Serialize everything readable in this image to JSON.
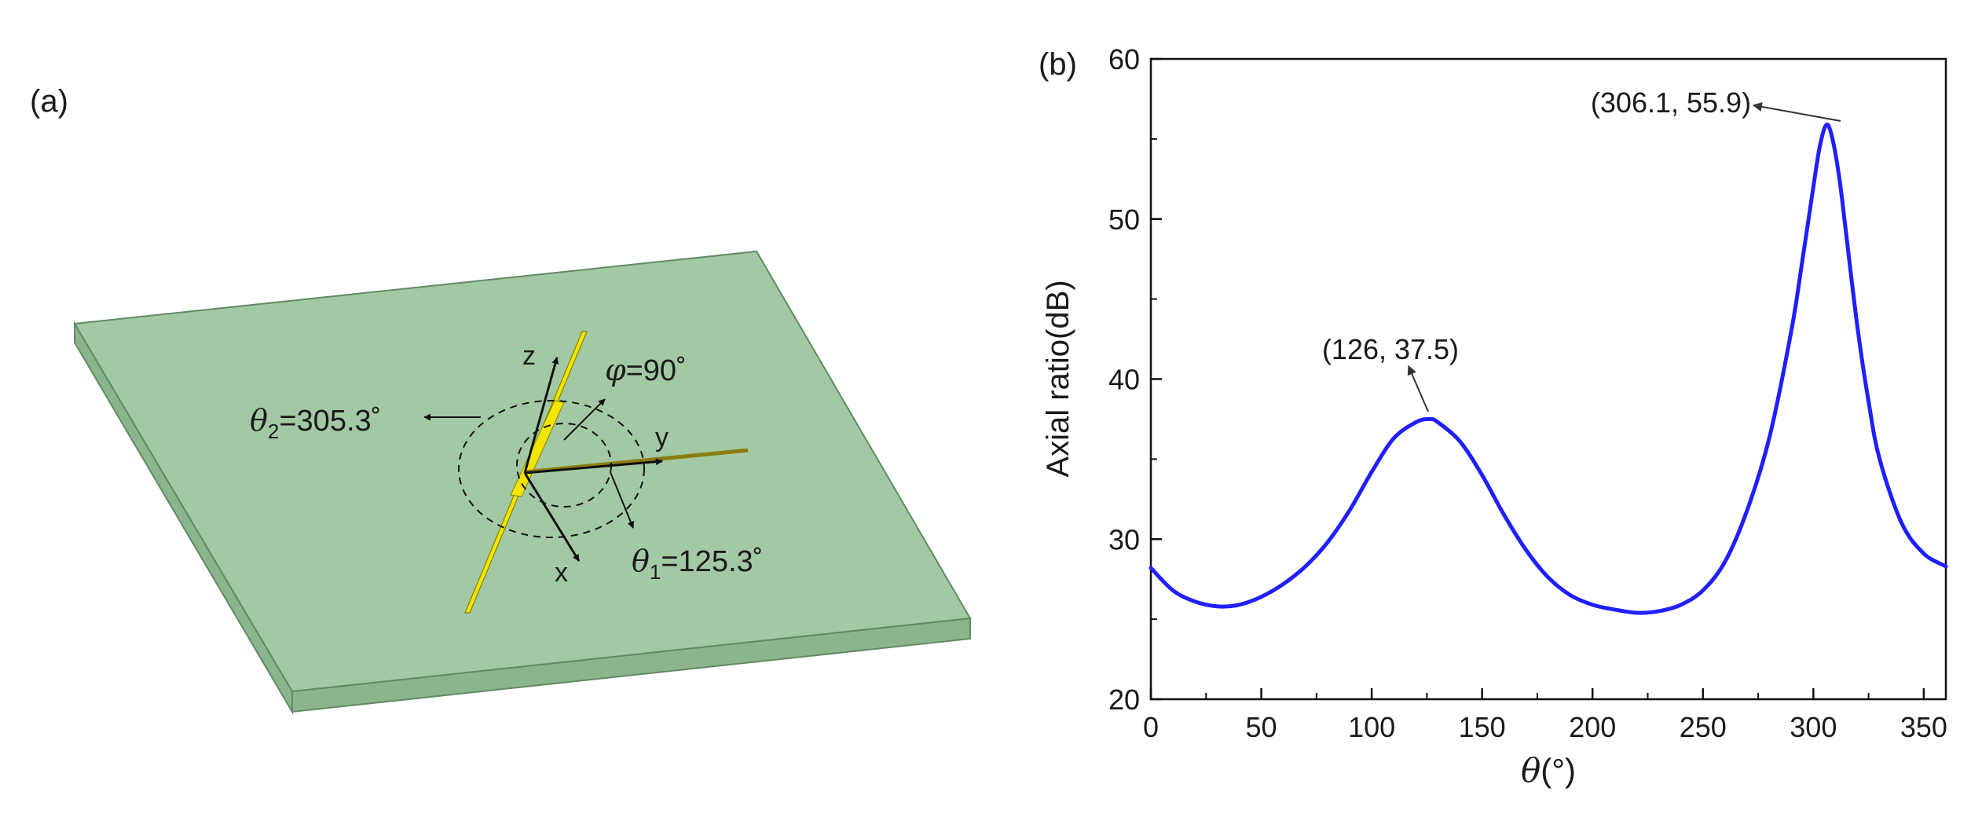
{
  "panel_a": {
    "label": "(a)",
    "colors": {
      "substrate_top": "#a3c9a4",
      "substrate_side": "#8bb58d",
      "substrate_edge": "#5f8b62",
      "wire": "#f2e600",
      "wire_edge": "#8a8200"
    },
    "axes": {
      "x": "x",
      "y": "y",
      "z": "z"
    },
    "phi": {
      "symbol": "φ",
      "value": "=90˚"
    },
    "theta1": {
      "symbol": "θ",
      "sub": "1",
      "value": "=125.3˚"
    },
    "theta2": {
      "symbol": "θ",
      "sub": "2",
      "value": "=305.3˚"
    }
  },
  "chart_data": {
    "type": "line",
    "panel_label": "(b)",
    "title": "",
    "xlabel_symbol": "θ",
    "xlabel_unit": "(°)",
    "ylabel": "Axial ratio(dB)",
    "xlim": [
      0,
      360
    ],
    "ylim": [
      20,
      60
    ],
    "xticks": [
      0,
      50,
      100,
      150,
      200,
      250,
      300,
      350
    ],
    "yticks": [
      20,
      30,
      40,
      50,
      60
    ],
    "grid": false,
    "series": [
      {
        "name": "Axial ratio",
        "color": "#1f1fff",
        "x": [
          0,
          10,
          20,
          30,
          40,
          50,
          60,
          70,
          80,
          90,
          100,
          110,
          120,
          126,
          130,
          140,
          150,
          160,
          170,
          180,
          190,
          200,
          210,
          220,
          230,
          240,
          250,
          260,
          270,
          280,
          290,
          295,
          300,
          303,
          306.1,
          309,
          312,
          315,
          320,
          325,
          330,
          340,
          350,
          360
        ],
        "y": [
          28.2,
          26.8,
          26.1,
          25.8,
          25.9,
          26.4,
          27.2,
          28.3,
          29.8,
          31.8,
          34.2,
          36.3,
          37.3,
          37.5,
          37.3,
          36.1,
          34.0,
          31.5,
          29.3,
          27.6,
          26.5,
          25.9,
          25.6,
          25.4,
          25.5,
          25.9,
          26.8,
          28.6,
          31.8,
          36.3,
          43.0,
          47.4,
          52.0,
          54.6,
          55.9,
          54.8,
          52.3,
          48.9,
          43.2,
          38.6,
          35.0,
          31.0,
          29.1,
          28.3
        ]
      }
    ],
    "annotations": [
      {
        "text": "(306.1, 55.9)",
        "x": 306.1,
        "y": 55.9
      },
      {
        "text": "(126, 37.5)",
        "x": 126,
        "y": 37.5
      }
    ]
  }
}
